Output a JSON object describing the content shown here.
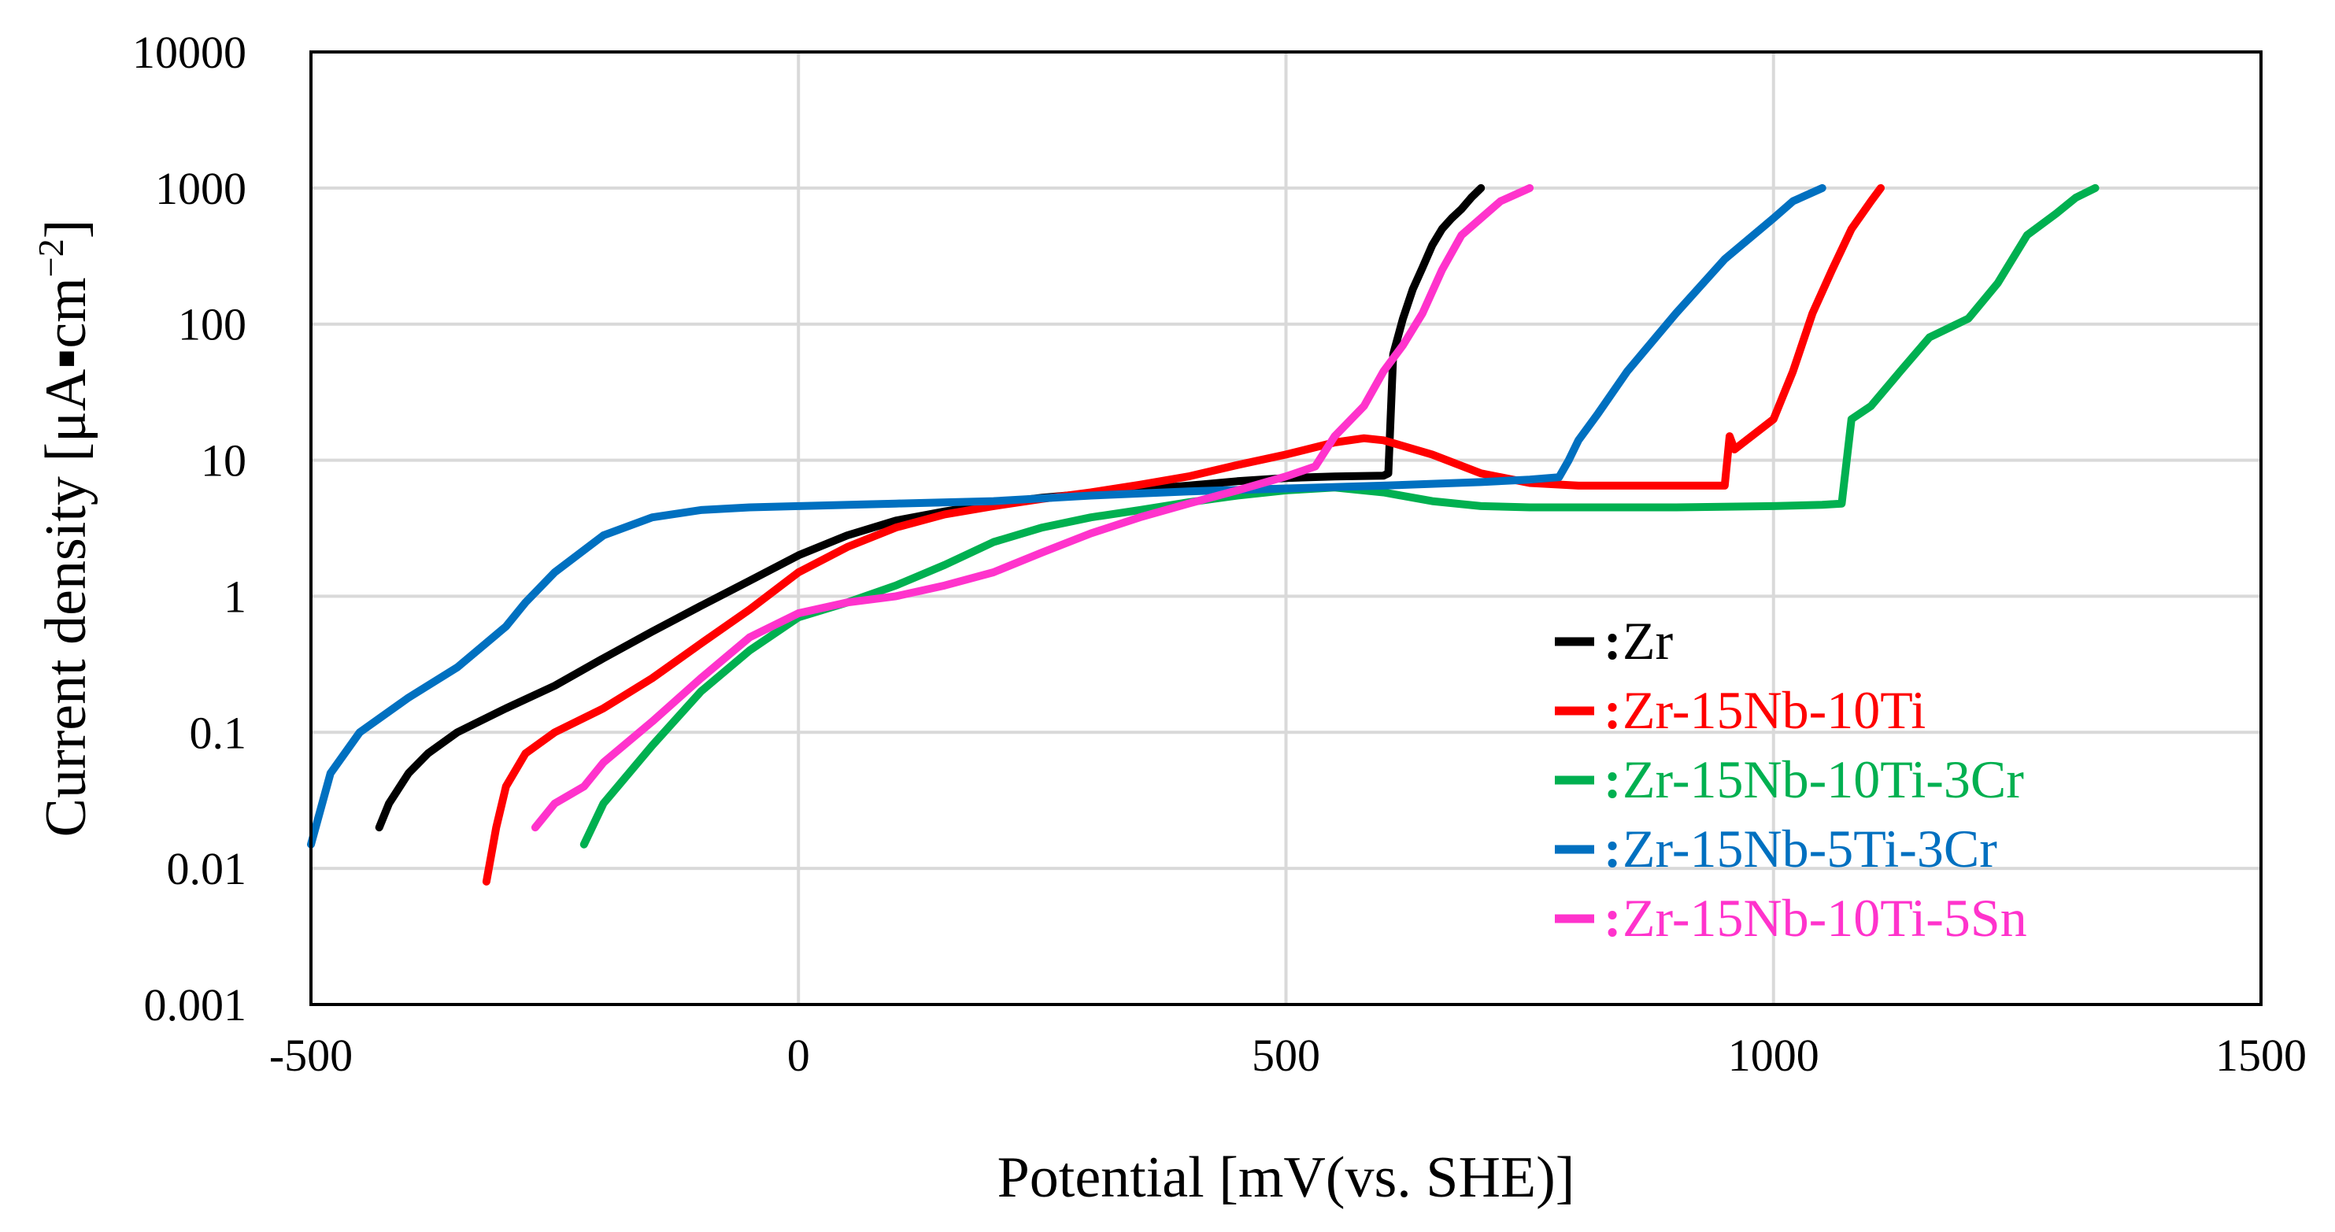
{
  "chart_data": {
    "type": "line",
    "title": "",
    "xlabel": "Potential [mV(vs. SHE)]",
    "ylabel_main": "Current density [μA",
    "ylabel_dot": "▪",
    "ylabel_unit": "cm",
    "ylabel_exp": "−2",
    "ylabel_close": "]",
    "xlim": [
      -500,
      1500
    ],
    "ylim": [
      0.001,
      10000
    ],
    "yscale": "log",
    "grid": true,
    "x_ticks": [
      {
        "value": -500,
        "label": "-500"
      },
      {
        "value": 0,
        "label": "0"
      },
      {
        "value": 500,
        "label": "500"
      },
      {
        "value": 1000,
        "label": "1000"
      },
      {
        "value": 1500,
        "label": "1500"
      }
    ],
    "y_ticks": [
      {
        "value": 0.001,
        "label": "0.001"
      },
      {
        "value": 0.01,
        "label": "0.01"
      },
      {
        "value": 0.1,
        "label": "0.1"
      },
      {
        "value": 1,
        "label": "1"
      },
      {
        "value": 10,
        "label": "10"
      },
      {
        "value": 100,
        "label": "100"
      },
      {
        "value": 1000,
        "label": "1000"
      },
      {
        "value": 10000,
        "label": "10000"
      }
    ],
    "legend_position": "lower-right",
    "legend_separator": ":",
    "series": [
      {
        "name": "Zr",
        "color": "#000000",
        "x": [
          -430,
          -420,
          -400,
          -380,
          -350,
          -300,
          -250,
          -200,
          -150,
          -100,
          -50,
          0,
          50,
          100,
          150,
          200,
          250,
          300,
          350,
          400,
          450,
          500,
          550,
          600,
          605,
          610,
          620,
          630,
          640,
          650,
          660,
          670,
          680,
          690,
          700
        ],
        "y": [
          0.02,
          0.03,
          0.05,
          0.07,
          0.1,
          0.15,
          0.22,
          0.35,
          0.55,
          0.85,
          1.3,
          2.0,
          2.8,
          3.6,
          4.2,
          4.8,
          5.3,
          5.7,
          6.1,
          6.5,
          7.0,
          7.4,
          7.6,
          7.7,
          8.0,
          60,
          110,
          180,
          260,
          380,
          500,
          600,
          700,
          850,
          1000
        ]
      },
      {
        "name": "Zr-15Nb-10Ti",
        "color": "#ff0000",
        "x": [
          -320,
          -310,
          -300,
          -280,
          -250,
          -200,
          -150,
          -100,
          -50,
          0,
          50,
          100,
          150,
          200,
          250,
          300,
          350,
          400,
          450,
          500,
          550,
          580,
          600,
          650,
          700,
          750,
          800,
          850,
          900,
          950,
          955,
          960,
          1000,
          1020,
          1040,
          1060,
          1080,
          1100,
          1110
        ],
        "y": [
          0.008,
          0.02,
          0.04,
          0.07,
          0.1,
          0.15,
          0.25,
          0.45,
          0.8,
          1.5,
          2.3,
          3.2,
          4.0,
          4.6,
          5.2,
          5.8,
          6.6,
          7.6,
          9.2,
          11,
          13.5,
          14.5,
          14,
          11,
          8,
          6.8,
          6.5,
          6.5,
          6.5,
          6.5,
          15,
          12,
          20,
          45,
          120,
          250,
          500,
          800,
          1000
        ]
      },
      {
        "name": "Zr-15Nb-10Ti-3Cr",
        "color": "#00b050",
        "x": [
          -220,
          -200,
          -150,
          -100,
          -50,
          0,
          50,
          100,
          150,
          200,
          250,
          300,
          350,
          400,
          450,
          500,
          550,
          600,
          650,
          700,
          750,
          800,
          900,
          1000,
          1050,
          1070,
          1080,
          1100,
          1130,
          1160,
          1200,
          1230,
          1260,
          1290,
          1310,
          1330
        ],
        "y": [
          0.015,
          0.03,
          0.08,
          0.2,
          0.4,
          0.7,
          0.9,
          1.2,
          1.7,
          2.5,
          3.2,
          3.8,
          4.3,
          4.9,
          5.5,
          6.0,
          6.3,
          5.8,
          5.0,
          4.6,
          4.5,
          4.5,
          4.5,
          4.6,
          4.7,
          4.8,
          20,
          25,
          45,
          80,
          110,
          200,
          450,
          650,
          850,
          1000
        ]
      },
      {
        "name": "Zr-15Nb-5Ti-3Cr",
        "color": "#0070c0",
        "x": [
          -500,
          -480,
          -450,
          -400,
          -350,
          -300,
          -280,
          -250,
          -200,
          -150,
          -100,
          -50,
          0,
          100,
          200,
          300,
          400,
          500,
          600,
          700,
          750,
          780,
          790,
          800,
          820,
          850,
          900,
          950,
          1000,
          1020,
          1050
        ],
        "y": [
          0.015,
          0.05,
          0.1,
          0.18,
          0.3,
          0.6,
          0.9,
          1.5,
          2.8,
          3.8,
          4.3,
          4.5,
          4.6,
          4.8,
          5.0,
          5.5,
          5.9,
          6.2,
          6.5,
          6.9,
          7.2,
          7.5,
          10,
          14,
          22,
          45,
          120,
          300,
          600,
          800,
          1000
        ]
      },
      {
        "name": "Zr-15Nb-10Ti-5Sn",
        "color": "#ff33cc",
        "x": [
          -270,
          -250,
          -220,
          -200,
          -150,
          -100,
          -50,
          0,
          50,
          100,
          150,
          200,
          250,
          300,
          350,
          400,
          450,
          500,
          530,
          550,
          580,
          600,
          620,
          640,
          660,
          680,
          700,
          720,
          750
        ],
        "y": [
          0.02,
          0.03,
          0.04,
          0.06,
          0.12,
          0.25,
          0.5,
          0.75,
          0.9,
          1.0,
          1.2,
          1.5,
          2.1,
          2.9,
          3.8,
          4.8,
          6.0,
          7.6,
          9,
          15,
          25,
          45,
          70,
          120,
          250,
          450,
          600,
          800,
          1000
        ]
      }
    ]
  }
}
